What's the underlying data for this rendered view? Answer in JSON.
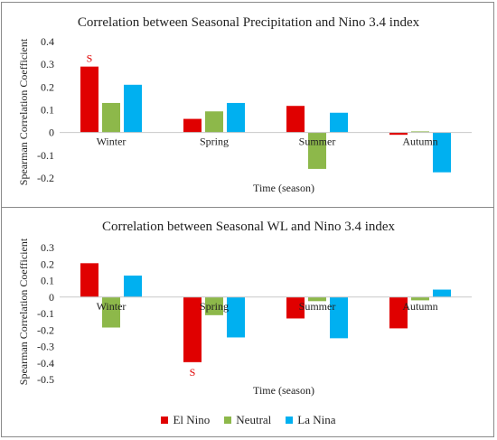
{
  "chart_data": [
    {
      "type": "bar",
      "title": "Correlation between Seasonal Precipitation and Nino 3.4 index",
      "xlabel": "Time (season)",
      "ylabel": "Spearman Correlation Coefficient",
      "categories": [
        "Winter",
        "Spring",
        "Summer",
        "Autumn"
      ],
      "ylim": [
        -0.2,
        0.4
      ],
      "yticks": [
        "0.4",
        "0.3",
        "0.2",
        "0.1",
        "0",
        "-0.1",
        "-0.2"
      ],
      "grid": false,
      "series": [
        {
          "name": "El Nino",
          "values": [
            0.29,
            0.06,
            0.117,
            -0.01
          ]
        },
        {
          "name": "Neutral",
          "values": [
            0.13,
            0.093,
            -0.16,
            0.005
          ]
        },
        {
          "name": "La Nina",
          "values": [
            0.21,
            0.13,
            0.087,
            -0.175
          ]
        }
      ],
      "annotations": [
        {
          "text": "S",
          "series": "El Nino",
          "category": "Winter"
        }
      ]
    },
    {
      "type": "bar",
      "title": "Correlation between Seasonal WL and Nino 3.4 index",
      "xlabel": "Time (season)",
      "ylabel": "Spearman Correlation Coefficient",
      "categories": [
        "Winter",
        "Spring",
        "Summer",
        "Autumn"
      ],
      "ylim": [
        -0.5,
        0.3
      ],
      "yticks": [
        "0.3",
        "0.2",
        "0.1",
        "0",
        "-0.1",
        "-0.2",
        "-0.3",
        "-0.4",
        "-0.5"
      ],
      "grid": false,
      "series": [
        {
          "name": "El Nino",
          "values": [
            0.205,
            -0.395,
            -0.13,
            -0.19
          ]
        },
        {
          "name": "Neutral",
          "values": [
            -0.185,
            -0.11,
            -0.025,
            -0.02
          ]
        },
        {
          "name": "La Nina",
          "values": [
            0.13,
            -0.245,
            -0.25,
            0.045
          ]
        }
      ],
      "annotations": [
        {
          "text": "S",
          "series": "El Nino",
          "category": "Spring"
        }
      ]
    }
  ],
  "legend": {
    "placement": "bottom",
    "items": [
      {
        "label": "El Nino",
        "color": "#e00000"
      },
      {
        "label": "Neutral",
        "color": "#8db84a"
      },
      {
        "label": "La Nina",
        "color": "#00b0f0"
      }
    ]
  },
  "colors": {
    "annotation": "#e00000",
    "axis": "#c8c8c8",
    "text": "#222222"
  }
}
